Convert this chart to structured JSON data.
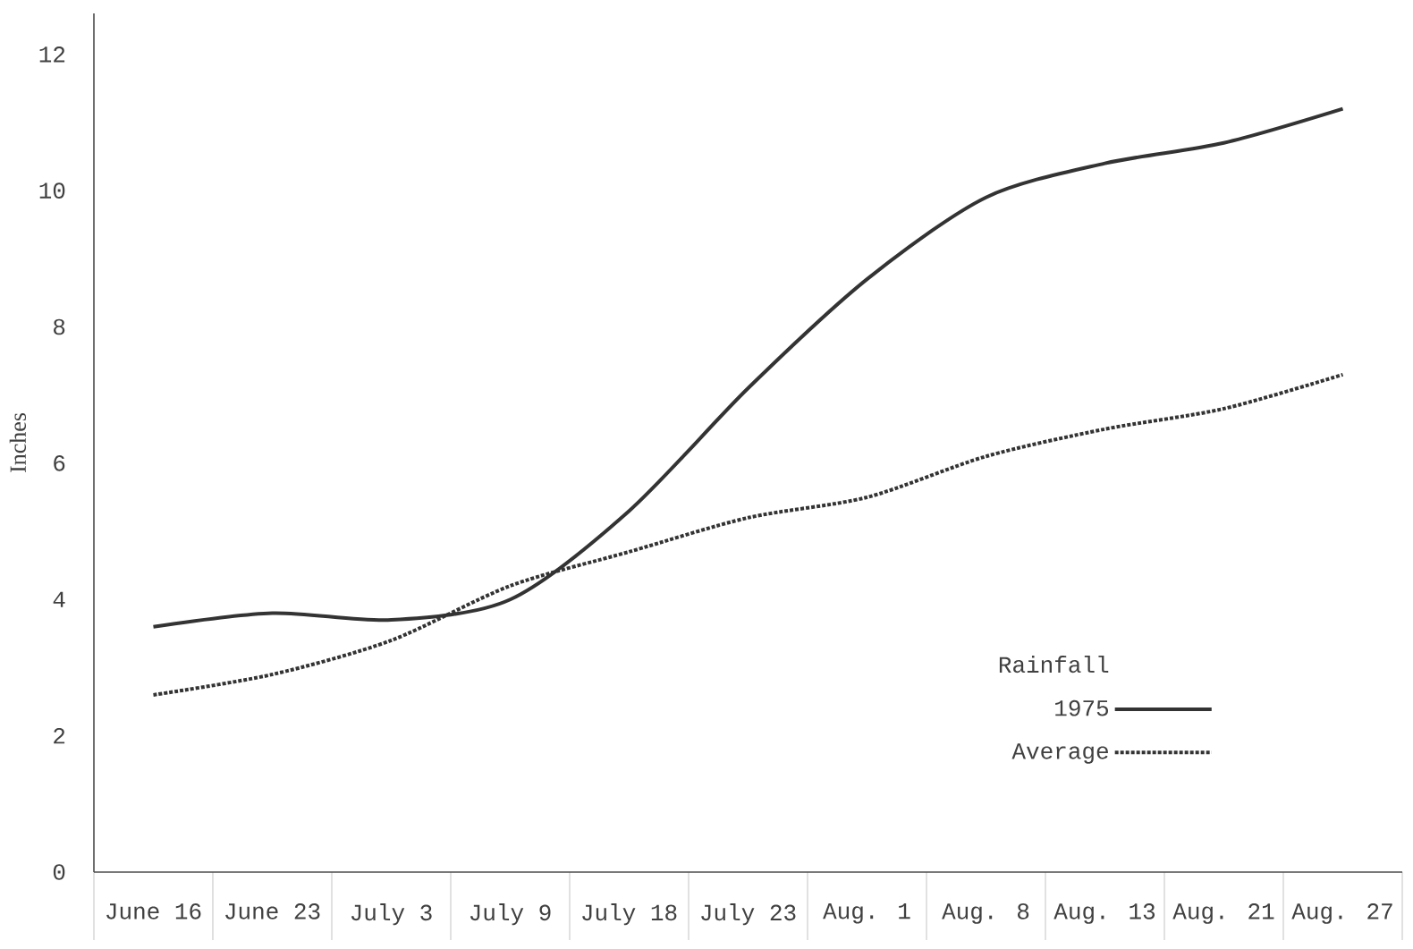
{
  "chart_data": {
    "type": "line",
    "ylabel": "Inches",
    "legend_title": "Rainfall",
    "legend": "bottom right",
    "categories": [
      "June 16",
      "June 23",
      "July 3",
      "July 9",
      "July 18",
      "July 23",
      "Aug. 1",
      "Aug. 8",
      "Aug. 13",
      "Aug. 21",
      "Aug. 27"
    ],
    "series": [
      {
        "name": "1975",
        "color": "#333333",
        "line_style": "solid",
        "values": [
          3.6,
          3.8,
          3.7,
          4.0,
          5.3,
          7.1,
          8.7,
          9.9,
          10.4,
          10.7,
          11.2
        ]
      },
      {
        "name": "Average",
        "color": "#333333",
        "line_style": "dotted",
        "values": [
          2.6,
          2.9,
          3.4,
          4.2,
          4.7,
          5.2,
          5.5,
          6.1,
          6.5,
          6.8,
          7.3
        ]
      }
    ],
    "ylim": [
      0,
      12.6
    ],
    "yticks": [
      0,
      2,
      4,
      6,
      8,
      10,
      12
    ],
    "grid": false
  }
}
